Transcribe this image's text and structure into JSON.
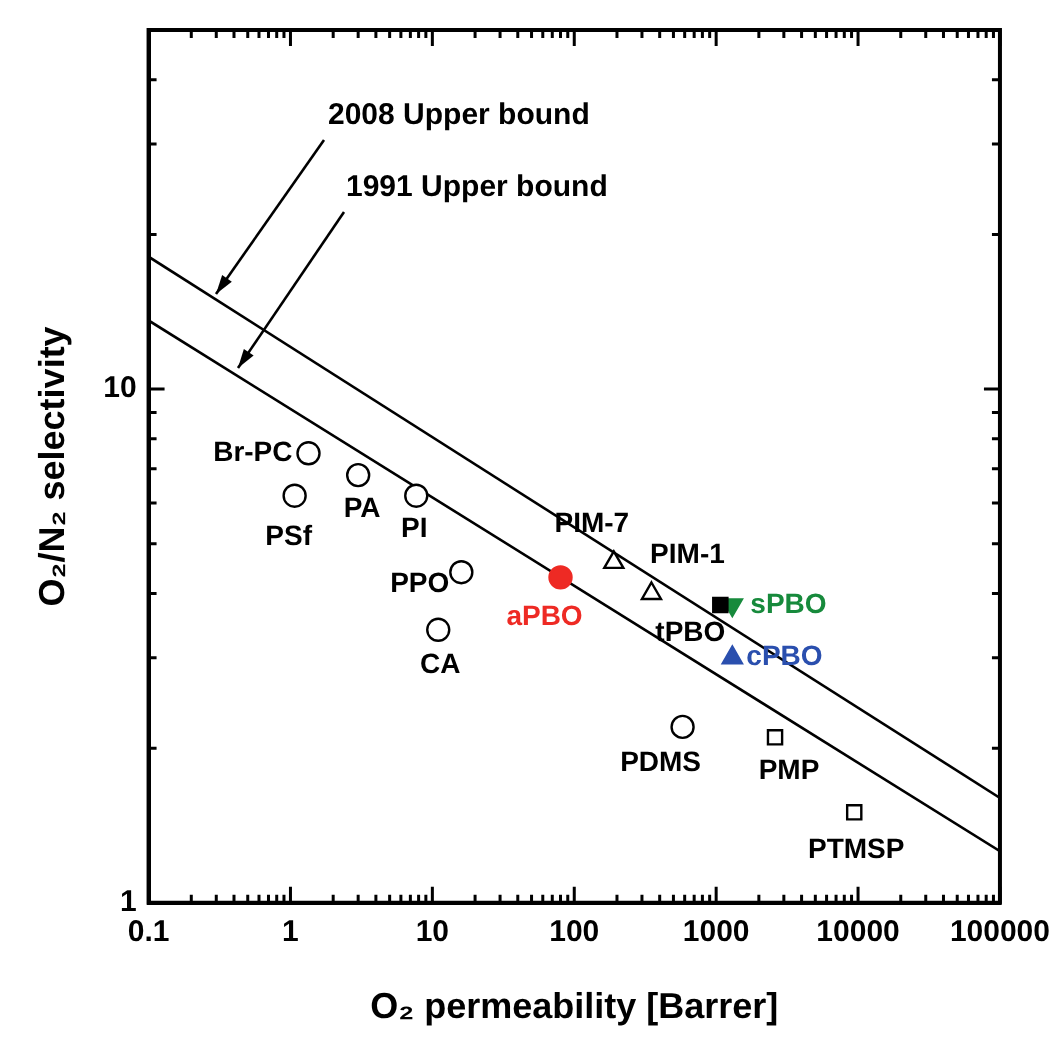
{
  "chart_data": {
    "type": "scatter",
    "xlabel": "O₂ permeability [Barrer]",
    "ylabel": "O₂/N₂ selectivity",
    "log": "xy",
    "legend": false,
    "grid": false,
    "xlim": [
      0.1,
      100000
    ],
    "xticks": [
      0.1,
      {
        "value": 0.2,
        "label": null
      },
      {
        "value": 0.3,
        "label": null
      },
      {
        "value": 0.4,
        "label": null
      },
      {
        "value": 0.5,
        "label": null
      },
      {
        "value": 0.6,
        "label": null
      },
      {
        "value": 0.7,
        "label": null
      },
      {
        "value": 0.8,
        "label": null
      },
      {
        "value": 0.9,
        "label": null
      },
      1,
      {
        "value": 2,
        "label": null
      },
      {
        "value": 3,
        "label": null
      },
      {
        "value": 4,
        "label": null
      },
      {
        "value": 5,
        "label": null
      },
      {
        "value": 6,
        "label": null
      },
      {
        "value": 7,
        "label": null
      },
      {
        "value": 8,
        "label": null
      },
      {
        "value": 9,
        "label": null
      },
      10,
      {
        "value": 20,
        "label": null
      },
      {
        "value": 30,
        "label": null
      },
      {
        "value": 40,
        "label": null
      },
      {
        "value": 50,
        "label": null
      },
      {
        "value": 60,
        "label": null
      },
      {
        "value": 70,
        "label": null
      },
      {
        "value": 80,
        "label": null
      },
      {
        "value": 90,
        "label": null
      },
      100,
      {
        "value": 200,
        "label": null
      },
      {
        "value": 300,
        "label": null
      },
      {
        "value": 400,
        "label": null
      },
      {
        "value": 500,
        "label": null
      },
      {
        "value": 600,
        "label": null
      },
      {
        "value": 700,
        "label": null
      },
      {
        "value": 800,
        "label": null
      },
      {
        "value": 900,
        "label": null
      },
      1000,
      {
        "value": 2000,
        "label": null
      },
      {
        "value": 3000,
        "label": null
      },
      {
        "value": 4000,
        "label": null
      },
      {
        "value": 5000,
        "label": null
      },
      {
        "value": 6000,
        "label": null
      },
      {
        "value": 7000,
        "label": null
      },
      {
        "value": 8000,
        "label": null
      },
      {
        "value": 9000,
        "label": null
      },
      10000,
      {
        "value": 20000,
        "label": null
      },
      {
        "value": 30000,
        "label": null
      },
      {
        "value": 40000,
        "label": null
      },
      {
        "value": 50000,
        "label": null
      },
      {
        "value": 60000,
        "label": null
      },
      {
        "value": 70000,
        "label": null
      },
      {
        "value": 80000,
        "label": null
      },
      {
        "value": 90000,
        "label": null
      },
      100000
    ],
    "ylim": [
      1,
      50
    ],
    "yticks": [
      1,
      {
        "value": 2,
        "label": null
      },
      {
        "value": 3,
        "label": null
      },
      {
        "value": 4,
        "label": null
      },
      {
        "value": 5,
        "label": null
      },
      {
        "value": 6,
        "label": null
      },
      {
        "value": 7,
        "label": null
      },
      {
        "value": 8,
        "label": null
      },
      {
        "value": 9,
        "label": null
      },
      10,
      {
        "value": 20,
        "label": null
      },
      {
        "value": 30,
        "label": null
      },
      {
        "value": 40,
        "label": null
      }
    ],
    "series": [
      {
        "name": "Br-PC",
        "color": "#000000",
        "marker": "circle",
        "x": [
          1.34
        ],
        "values": [
          7.5
        ]
      },
      {
        "name": "PSf",
        "color": "#000000",
        "marker": "circle",
        "x": [
          1.07
        ],
        "values": [
          6.2
        ]
      },
      {
        "name": "PA",
        "color": "#000000",
        "marker": "circle",
        "x": [
          3.0
        ],
        "values": [
          6.8
        ]
      },
      {
        "name": "PI",
        "color": "#000000",
        "marker": "circle",
        "x": [
          7.7
        ],
        "values": [
          6.2
        ]
      },
      {
        "name": "PPO",
        "color": "#000000",
        "marker": "circle",
        "x": [
          16
        ],
        "values": [
          4.4
        ]
      },
      {
        "name": "CA",
        "color": "#000000",
        "marker": "circle",
        "x": [
          11
        ],
        "values": [
          3.4
        ]
      },
      {
        "name": "aPBO",
        "color": "#ee2a24",
        "marker": "circle",
        "x": [
          80
        ],
        "values": [
          4.3
        ]
      },
      {
        "name": "PIM-7",
        "color": "#000000",
        "marker": "triangle",
        "x": [
          190
        ],
        "values": [
          4.6
        ]
      },
      {
        "name": "PIM-1",
        "color": "#000000",
        "marker": "triangle",
        "x": [
          350
        ],
        "values": [
          4.0
        ]
      },
      {
        "name": "tPBO",
        "color": "#000000",
        "marker": "square",
        "x": [
          1070
        ],
        "values": [
          3.8
        ]
      },
      {
        "name": "sPBO",
        "color": "#178a3c",
        "marker": "triangle_down",
        "x": [
          1300
        ],
        "values": [
          3.8
        ]
      },
      {
        "name": "cPBO",
        "color": "#2a4fae",
        "marker": "triangle",
        "x": [
          1300
        ],
        "values": [
          3.0
        ]
      },
      {
        "name": "PDMS",
        "color": "#000000",
        "marker": "circle",
        "x": [
          580
        ],
        "values": [
          2.2
        ]
      },
      {
        "name": "PMP",
        "color": "#000000",
        "marker": "square",
        "x": [
          2600
        ],
        "values": [
          2.1
        ]
      },
      {
        "name": "PTMSP",
        "color": "#000000",
        "marker": "square",
        "x": [
          9400
        ],
        "values": [
          1.5
        ]
      },
      {
        "name": "2008 Upper bound",
        "type": "line",
        "color": "#000000",
        "marker": "none",
        "x": [
          0.1,
          100000
        ],
        "values": [
          18.1,
          1.6
        ]
      },
      {
        "name": "1991 Upper bound",
        "type": "line",
        "color": "#000000",
        "marker": "none",
        "x": [
          0.1,
          100000
        ],
        "values": [
          13.6,
          1.26
        ]
      }
    ]
  }
}
